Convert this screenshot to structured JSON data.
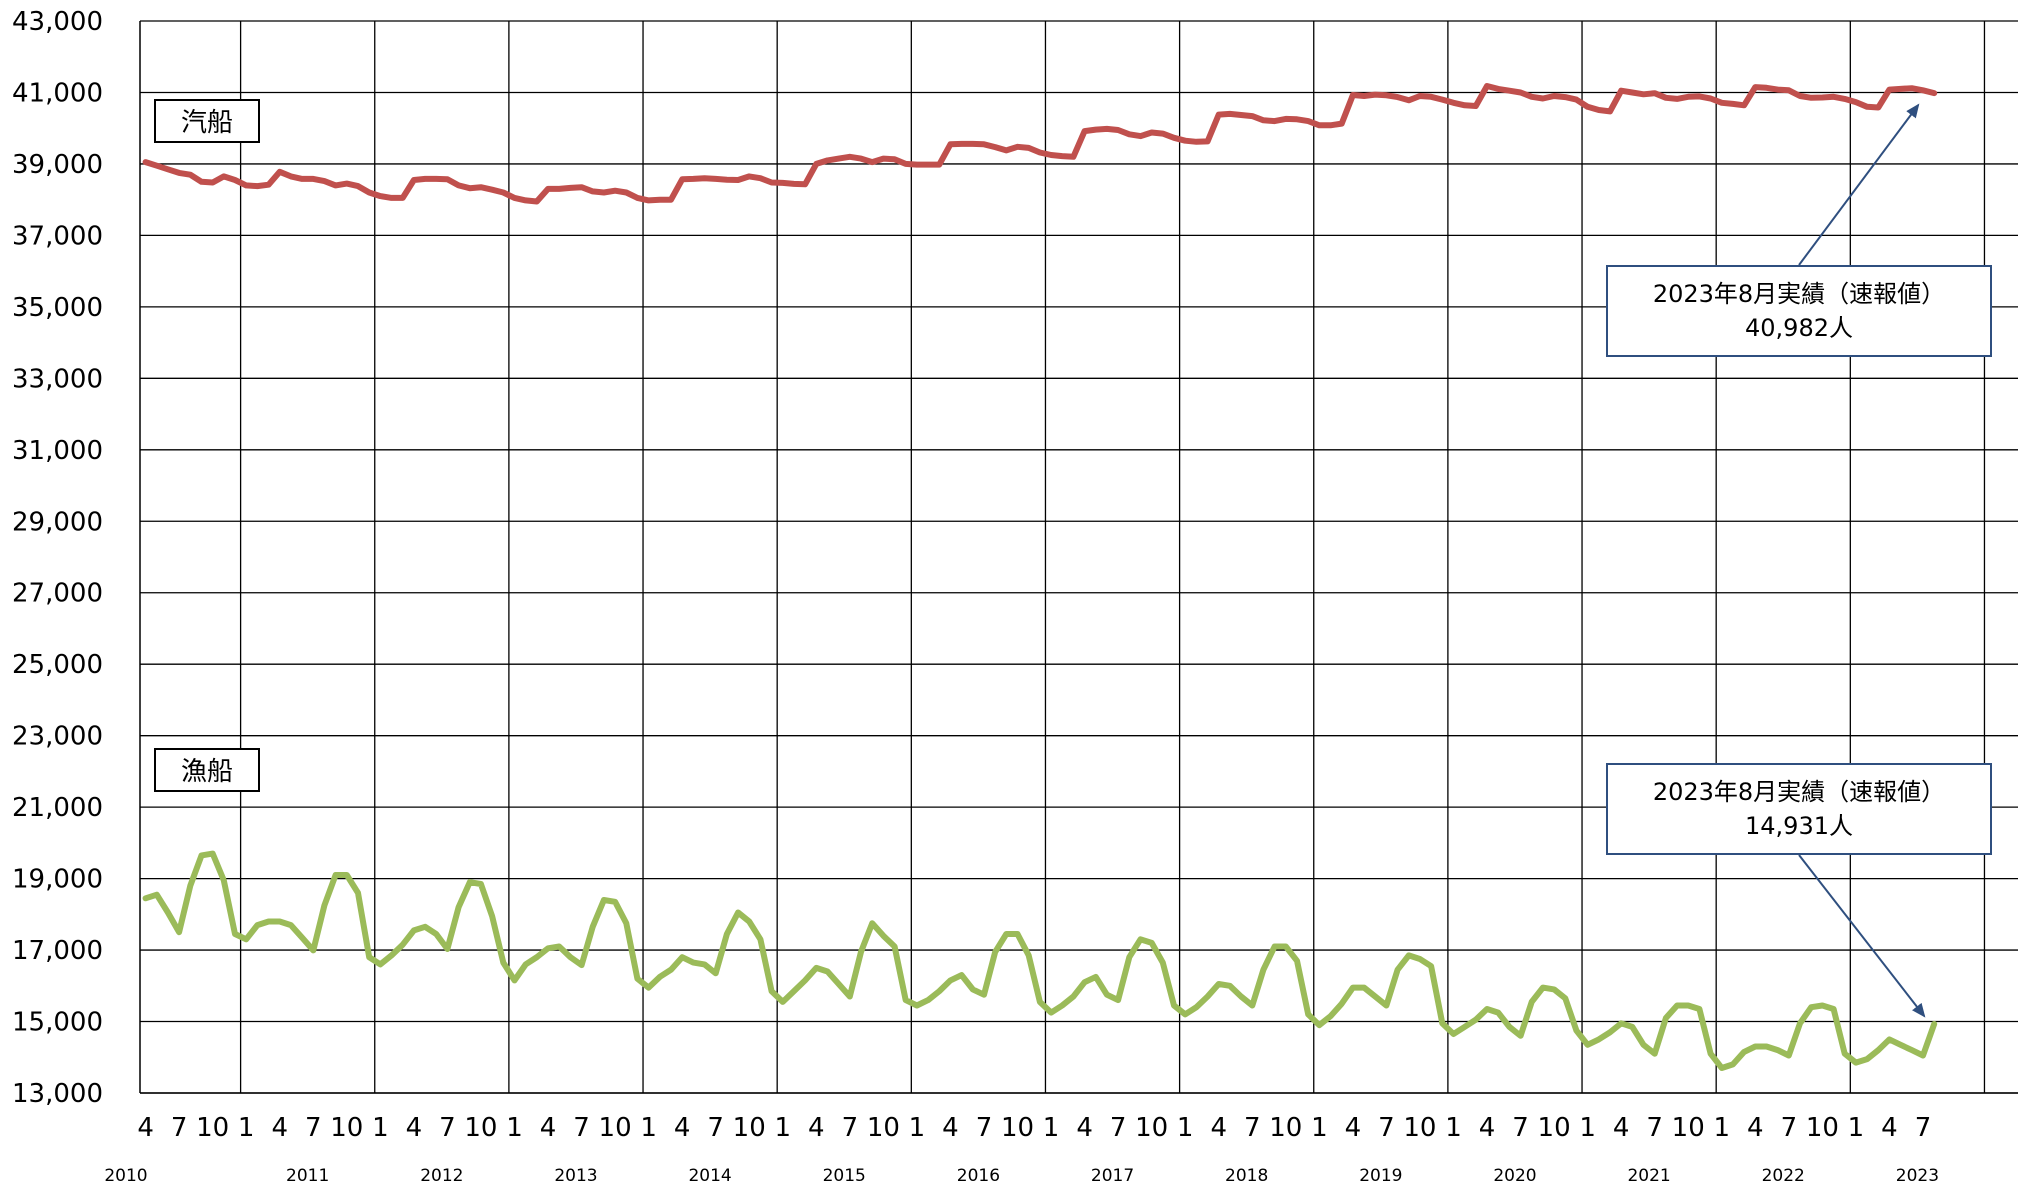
{
  "chart_data": {
    "type": "line",
    "title": "",
    "xlabel": "",
    "ylabel": "",
    "ylim": [
      13000,
      43000
    ],
    "y_ticks": [
      "13,000",
      "15,000",
      "17,000",
      "19,000",
      "21,000",
      "23,000",
      "25,000",
      "27,000",
      "29,000",
      "31,000",
      "33,000",
      "35,000",
      "37,000",
      "39,000",
      "41,000",
      "43,000"
    ],
    "x_start": "2010-04",
    "x_end": "2023-08",
    "month_tick_labels": [
      "4",
      "7",
      "10",
      "1"
    ],
    "year_labels": [
      "2010",
      "2011",
      "2012",
      "2013",
      "2014",
      "2015",
      "2016",
      "2017",
      "2018",
      "2019",
      "2020",
      "2021",
      "2022",
      "2023"
    ],
    "grid": true,
    "series": [
      {
        "name": "汽船",
        "color": "#C0504D",
        "values": [
          39050,
          38950,
          38850,
          38750,
          38700,
          38500,
          38480,
          38650,
          38550,
          38400,
          38380,
          38420,
          38780,
          38650,
          38580,
          38580,
          38520,
          38400,
          38450,
          38380,
          38200,
          38100,
          38050,
          38050,
          38550,
          38580,
          38580,
          38570,
          38400,
          38320,
          38350,
          38280,
          38200,
          38050,
          37980,
          37950,
          38300,
          38300,
          38330,
          38350,
          38230,
          38200,
          38250,
          38200,
          38050,
          37980,
          38000,
          38000,
          38570,
          38580,
          38600,
          38580,
          38560,
          38550,
          38650,
          38600,
          38480,
          38470,
          38440,
          38430,
          39000,
          39100,
          39150,
          39200,
          39150,
          39050,
          39150,
          39130,
          39000,
          38980,
          38980,
          38980,
          39550,
          39560,
          39560,
          39550,
          39470,
          39380,
          39480,
          39450,
          39320,
          39250,
          39220,
          39200,
          39920,
          39960,
          39980,
          39950,
          39830,
          39780,
          39880,
          39850,
          39730,
          39650,
          39620,
          39630,
          40380,
          40400,
          40370,
          40340,
          40220,
          40200,
          40260,
          40250,
          40200,
          40080,
          40080,
          40130,
          40930,
          40900,
          40940,
          40920,
          40870,
          40780,
          40900,
          40880,
          40800,
          40710,
          40640,
          40620,
          41180,
          41100,
          41050,
          41000,
          40880,
          40830,
          40900,
          40870,
          40800,
          40600,
          40510,
          40470,
          41050,
          41000,
          40950,
          40980,
          40850,
          40820,
          40880,
          40890,
          40830,
          40710,
          40680,
          40640,
          41150,
          41130,
          41080,
          41060,
          40900,
          40850,
          40860,
          40880,
          40820,
          40730,
          40600,
          40580,
          41080,
          41100,
          41120,
          41060,
          40982
        ]
      },
      {
        "name": "漁船",
        "color": "#9BBB59",
        "values": [
          18450,
          18550,
          18050,
          17500,
          18800,
          19650,
          19700,
          18950,
          17450,
          17300,
          17700,
          17800,
          17800,
          17700,
          17350,
          16990,
          18250,
          19100,
          19100,
          18600,
          16800,
          16600,
          16850,
          17150,
          17550,
          17650,
          17450,
          17030,
          18200,
          18900,
          18850,
          17950,
          16650,
          16150,
          16600,
          16800,
          17050,
          17100,
          16800,
          16580,
          17650,
          18400,
          18350,
          17750,
          16200,
          15950,
          16250,
          16450,
          16800,
          16650,
          16600,
          16350,
          17450,
          18050,
          17800,
          17300,
          15850,
          15550,
          15850,
          16150,
          16500,
          16400,
          16050,
          15700,
          16950,
          17750,
          17400,
          17100,
          15600,
          15450,
          15600,
          15850,
          16150,
          16300,
          15900,
          15750,
          16950,
          17450,
          17450,
          16850,
          15550,
          15250,
          15450,
          15700,
          16100,
          16250,
          15750,
          15600,
          16800,
          17300,
          17200,
          16650,
          15450,
          15200,
          15400,
          15700,
          16050,
          16000,
          15700,
          15450,
          16450,
          17100,
          17100,
          16700,
          15200,
          14900,
          15150,
          15500,
          15950,
          15950,
          15700,
          15450,
          16450,
          16850,
          16750,
          16550,
          14950,
          14650,
          14850,
          15050,
          15350,
          15250,
          14850,
          14600,
          15550,
          15950,
          15900,
          15650,
          14750,
          14350,
          14500,
          14700,
          14950,
          14850,
          14350,
          14100,
          15100,
          15450,
          15450,
          15350,
          14100,
          13700,
          13800,
          14150,
          14300,
          14300,
          14200,
          14050,
          14950,
          15400,
          15450,
          15350,
          14100,
          13850,
          13950,
          14200,
          14500,
          14350,
          14200,
          14050,
          14931
        ]
      }
    ],
    "labels": {
      "kisen": "汽船",
      "gyosen": "漁船"
    },
    "annotations": [
      {
        "line1": "2023年8月実績（速報値）",
        "line2": "40,982人"
      },
      {
        "line1": "2023年8月実績（速報値）",
        "line2": "14,931人"
      }
    ]
  }
}
